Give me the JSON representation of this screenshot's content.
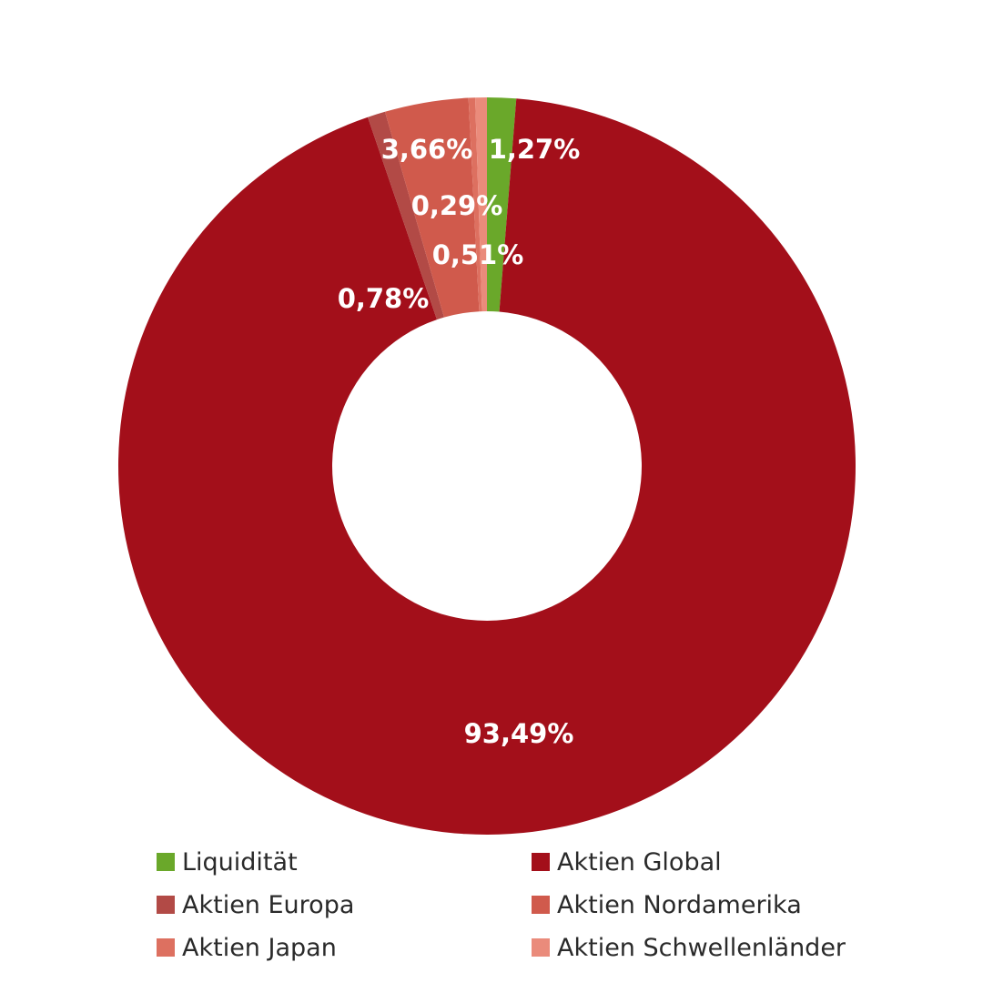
{
  "chart_data": {
    "type": "pie",
    "donut": true,
    "title": "",
    "legend_position": "bottom",
    "slices": [
      {
        "name": "Liquidität",
        "value": 1.27,
        "label": "1,27%",
        "color": "#6aa82a"
      },
      {
        "name": "Aktien Global",
        "value": 93.49,
        "label": "93,49%",
        "color": "#a30f1a"
      },
      {
        "name": "Aktien Europa",
        "value": 0.78,
        "label": "0,78%",
        "color": "#b24a46"
      },
      {
        "name": "Aktien Nordamerika",
        "value": 3.66,
        "label": "3,66%",
        "color": "#d05a4c"
      },
      {
        "name": "Aktien Japan",
        "value": 0.29,
        "label": "0,29%",
        "color": "#dd7060"
      },
      {
        "name": "Aktien Schwellenländer",
        "value": 0.51,
        "label": "0,51%",
        "color": "#ea8b7b"
      }
    ]
  }
}
